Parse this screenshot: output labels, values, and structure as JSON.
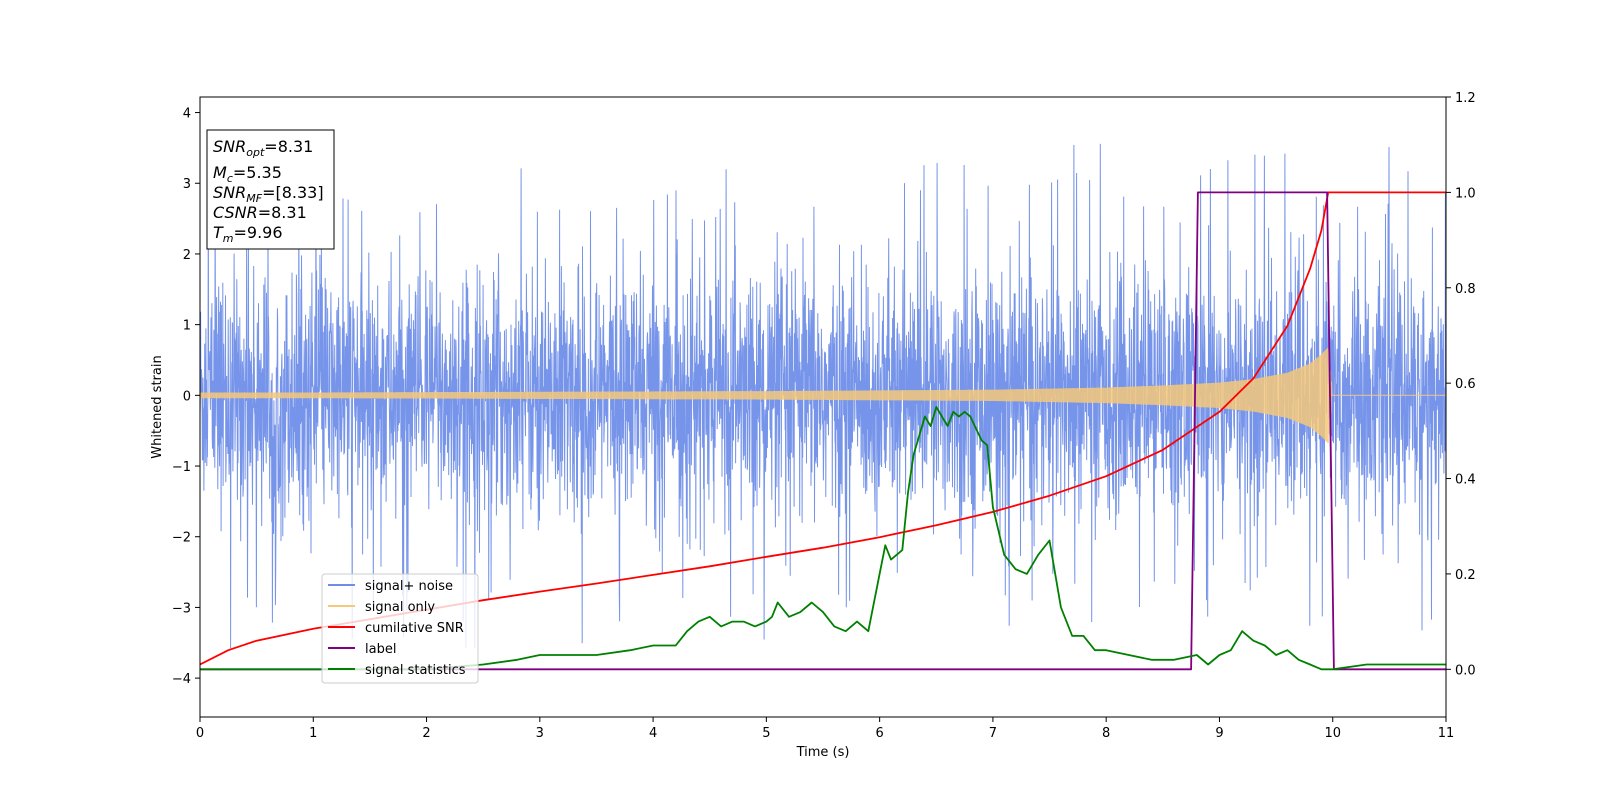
{
  "chart_data": {
    "type": "line",
    "xlabel": "Time (s)",
    "ylabel": "Whitened strain",
    "xlim": [
      0,
      11
    ],
    "ylim": [
      -4.55,
      4.22
    ],
    "y2lim": [
      -0.1,
      1.2
    ],
    "xticks": [
      "0",
      "1",
      "2",
      "3",
      "4",
      "5",
      "6",
      "7",
      "8",
      "9",
      "10",
      "11"
    ],
    "yticks": [
      "−4",
      "−3",
      "−2",
      "−1",
      "0",
      "1",
      "2",
      "3",
      "4"
    ],
    "y2ticks": [
      "0.0",
      "0.2",
      "0.4",
      "0.6",
      "0.8",
      "1.0",
      "1.2"
    ],
    "grid": false,
    "legend_position": "lower-left",
    "annotation": {
      "snr_opt": {
        "main": "SNR",
        "sub": "opt",
        "value": "=8.31"
      },
      "mc": {
        "main": "M",
        "sub": "c",
        "value": "=5.35"
      },
      "snr_mf": {
        "main": "SNR",
        "sub": "MF",
        "value": "=[8.33]"
      },
      "csnr": {
        "main": "CSNR",
        "sub": "",
        "value": "=8.31"
      },
      "tm": {
        "main": "T",
        "sub": "m",
        "value": "=9.96"
      }
    },
    "series": [
      {
        "name": "signal+ noise",
        "color": "#6f8ee8",
        "axis": "left",
        "description_values": {
          "noise_band_typical": [
            -1.5,
            1.5
          ],
          "max_spike": 3.82,
          "min_spike": -4.15
        }
      },
      {
        "name": "signal only",
        "color": "#f5c87a",
        "axis": "left",
        "envelope_x": [
          0,
          1,
          2,
          3,
          4,
          5,
          6,
          7,
          8,
          8.5,
          9,
          9.3,
          9.6,
          9.8,
          9.9,
          9.96,
          10,
          11
        ],
        "envelope_y": [
          0.04,
          0.04,
          0.045,
          0.05,
          0.055,
          0.06,
          0.07,
          0.08,
          0.11,
          0.14,
          0.18,
          0.23,
          0.32,
          0.45,
          0.58,
          0.68,
          0,
          0
        ]
      },
      {
        "name": "cumilative SNR",
        "color": "#ff0000",
        "axis": "right",
        "x": [
          0,
          0.25,
          0.5,
          1,
          1.5,
          2,
          2.5,
          3,
          3.5,
          4,
          4.5,
          5,
          5.5,
          6,
          6.5,
          7,
          7.5,
          8,
          8.5,
          9,
          9.3,
          9.6,
          9.8,
          9.9,
          9.96,
          10,
          11
        ],
        "y": [
          0.01,
          0.04,
          0.06,
          0.085,
          0.105,
          0.125,
          0.145,
          0.163,
          0.18,
          0.198,
          0.216,
          0.236,
          0.255,
          0.277,
          0.302,
          0.33,
          0.364,
          0.405,
          0.46,
          0.54,
          0.61,
          0.72,
          0.84,
          0.92,
          1.0,
          1.0,
          1.0
        ]
      },
      {
        "name": "label",
        "color": "#800080",
        "axis": "right",
        "x": [
          0,
          8.75,
          8.81,
          9.95,
          10.01,
          11
        ],
        "y": [
          0,
          0,
          1,
          1,
          0,
          0
        ]
      },
      {
        "name": "signal statistics",
        "color": "#008000",
        "axis": "right",
        "x": [
          0,
          1,
          2,
          2.5,
          2.8,
          3,
          3.2,
          3.5,
          3.8,
          4,
          4.1,
          4.2,
          4.3,
          4.4,
          4.5,
          4.6,
          4.7,
          4.8,
          4.9,
          5,
          5.05,
          5.1,
          5.2,
          5.3,
          5.4,
          5.5,
          5.6,
          5.7,
          5.8,
          5.9,
          6,
          6.05,
          6.1,
          6.2,
          6.25,
          6.3,
          6.4,
          6.45,
          6.5,
          6.55,
          6.6,
          6.65,
          6.7,
          6.75,
          6.8,
          6.9,
          6.95,
          7,
          7.1,
          7.2,
          7.3,
          7.4,
          7.5,
          7.6,
          7.7,
          7.8,
          7.9,
          8,
          8.2,
          8.4,
          8.6,
          8.8,
          8.9,
          9,
          9.1,
          9.2,
          9.3,
          9.4,
          9.5,
          9.6,
          9.7,
          9.8,
          9.9,
          10,
          10.3,
          10.6,
          11
        ],
        "y": [
          0,
          0,
          0.0,
          0.01,
          0.02,
          0.03,
          0.03,
          0.03,
          0.04,
          0.05,
          0.05,
          0.05,
          0.08,
          0.1,
          0.11,
          0.09,
          0.1,
          0.1,
          0.09,
          0.1,
          0.11,
          0.14,
          0.11,
          0.12,
          0.14,
          0.12,
          0.09,
          0.08,
          0.1,
          0.08,
          0.2,
          0.26,
          0.23,
          0.25,
          0.37,
          0.45,
          0.53,
          0.51,
          0.55,
          0.53,
          0.51,
          0.54,
          0.53,
          0.54,
          0.53,
          0.48,
          0.47,
          0.34,
          0.24,
          0.21,
          0.2,
          0.24,
          0.27,
          0.13,
          0.07,
          0.07,
          0.04,
          0.04,
          0.03,
          0.02,
          0.02,
          0.03,
          0.01,
          0.03,
          0.04,
          0.08,
          0.06,
          0.05,
          0.03,
          0.04,
          0.02,
          0.01,
          0.0,
          0.0,
          0.01,
          0.01,
          0.01
        ]
      }
    ]
  }
}
